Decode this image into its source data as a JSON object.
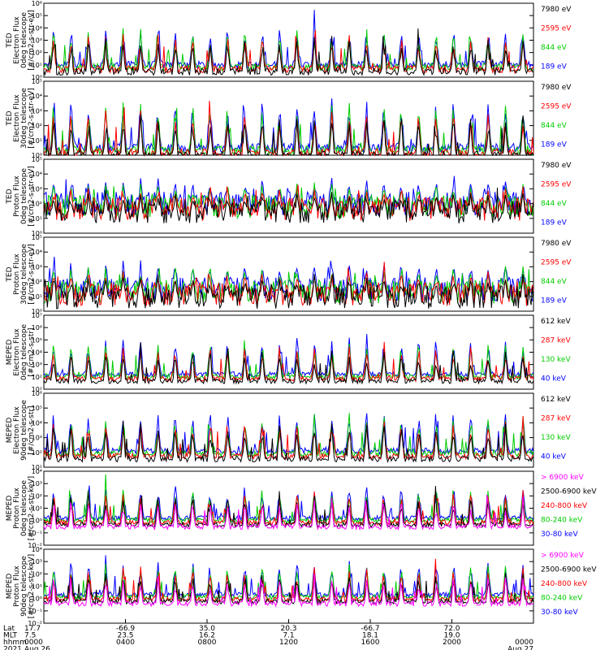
{
  "chart_data": {
    "type": "line",
    "x_axis": {
      "rows": [
        {
          "label": "Lat",
          "values": [
            "17.7",
            "-66.9",
            "35.0",
            "20.3",
            "-66.7",
            "72.0",
            ""
          ]
        },
        {
          "label": "MLT",
          "values": [
            "7.5",
            "23.5",
            "16.2",
            "7.1",
            "18.1",
            "19.0",
            ""
          ]
        },
        {
          "label": "hhmm",
          "values": [
            "0000",
            "0400",
            "0800",
            "1200",
            "1600",
            "2000",
            "0000"
          ]
        },
        {
          "label": "2021",
          "values": [
            "Aug 26",
            "",
            "",
            "",
            "",
            "",
            "Aug 27"
          ]
        }
      ],
      "xlim_hours": [
        0,
        24
      ]
    },
    "panels": [
      {
        "ylabel": [
          "TED",
          "Electron Flux",
          "0deg telescope",
          "[#/cm2-s-str-eV]"
        ],
        "ylim_log10": [
          0,
          6
        ],
        "yticks": [
          "10⁰",
          "10¹",
          "10²",
          "10³",
          "10⁴",
          "10⁵",
          "10⁶"
        ],
        "legend": [
          {
            "text": "7980 eV",
            "color": "#000000"
          },
          {
            "text": "2595 eV",
            "color": "#ff0000"
          },
          {
            "text": "844 eV",
            "color": "#00cc00"
          },
          {
            "text": "189 eV",
            "color": "#0000ff"
          }
        ],
        "base": 1.0,
        "spike": 3.4,
        "noise": 0.3
      },
      {
        "ylabel": [
          "TED",
          "Electron Flux",
          "30deg telescope",
          "[#/cm2-s-str-eV]"
        ],
        "ylim_log10": [
          0,
          5
        ],
        "yticks": [
          "10⁰",
          "10¹",
          "10²",
          "10³",
          "10⁴",
          "10⁵"
        ],
        "legend": [
          {
            "text": "7980 eV",
            "color": "#000000"
          },
          {
            "text": "2595 eV",
            "color": "#ff0000"
          },
          {
            "text": "844 eV",
            "color": "#00cc00"
          },
          {
            "text": "189 eV",
            "color": "#0000ff"
          }
        ],
        "base": 0.5,
        "spike": 3.5,
        "noise": 0.3
      },
      {
        "ylabel": [
          "TED",
          "Proton Flux",
          "0deg telescope",
          "[#/cm2-s-str-eV]"
        ],
        "ylim_log10": [
          0,
          5
        ],
        "yticks": [
          "10⁰",
          "10¹",
          "10²",
          "10³",
          "10⁴",
          "10⁵"
        ],
        "legend": [
          {
            "text": "7980 eV",
            "color": "#000000"
          },
          {
            "text": "2595 eV",
            "color": "#ff0000"
          },
          {
            "text": "844 eV",
            "color": "#00cc00"
          },
          {
            "text": "189 eV",
            "color": "#0000ff"
          }
        ],
        "base": 2.0,
        "spike": 1.8,
        "noise": 0.8
      },
      {
        "ylabel": [
          "TED",
          "Proton Flux",
          "30deg telescope",
          "[#/cm2-s-str-eV]"
        ],
        "ylim_log10": [
          0,
          5
        ],
        "yticks": [
          "10⁰",
          "10¹",
          "10²",
          "10³",
          "10⁴",
          "10⁵"
        ],
        "legend": [
          {
            "text": "7980 eV",
            "color": "#000000"
          },
          {
            "text": "2595 eV",
            "color": "#ff0000"
          },
          {
            "text": "844 eV",
            "color": "#00cc00"
          },
          {
            "text": "189 eV",
            "color": "#0000ff"
          }
        ],
        "base": 1.5,
        "spike": 2.0,
        "noise": 0.8
      },
      {
        "ylabel": [
          "MEPED",
          "Electron Flux",
          "0deg telescope",
          "[#/cm2-s-str]"
        ],
        "ylim_log10": [
          1,
          7
        ],
        "yticks": [
          "10¹",
          "10²",
          "10³",
          "10⁴",
          "10⁵",
          "10⁶",
          "10⁷"
        ],
        "legend": [
          {
            "text": "612 keV",
            "color": "#000000"
          },
          {
            "text": "287 keV",
            "color": "#ff0000"
          },
          {
            "text": "130 keV",
            "color": "#00cc00"
          },
          {
            "text": "40 keV",
            "color": "#0000ff"
          }
        ],
        "base": 2.2,
        "spike": 3.2,
        "noise": 0.2
      },
      {
        "ylabel": [
          "MEPED",
          "Electron Flux",
          "90deg telescope",
          "[#/cm2-s-str]"
        ],
        "ylim_log10": [
          1,
          6
        ],
        "yticks": [
          "10¹",
          "10²",
          "10³",
          "10⁴",
          "10⁵",
          "10⁶"
        ],
        "legend": [
          {
            "text": "612 keV",
            "color": "#000000"
          },
          {
            "text": "287 keV",
            "color": "#ff0000"
          },
          {
            "text": "130 keV",
            "color": "#00cc00"
          },
          {
            "text": "40 keV",
            "color": "#0000ff"
          }
        ],
        "base": 2.1,
        "spike": 3.0,
        "noise": 0.2
      },
      {
        "ylabel": [
          "MEPED",
          "Proton Flux",
          "0deg telescope",
          "[#/cm2-s-str-keV]"
        ],
        "ylim_log10": [
          -2,
          4
        ],
        "yticks": [
          "10⁻²",
          "10⁻¹",
          "10⁰",
          "10¹",
          "10²",
          "10³",
          "10⁴"
        ],
        "legend": [
          {
            "text": "> 6900 keV",
            "color": "#ff00ff"
          },
          {
            "text": "2500-6900 keV",
            "color": "#000000"
          },
          {
            "text": "240-800 keV",
            "color": "#ff0000"
          },
          {
            "text": "80-240 keV",
            "color": "#00cc00"
          },
          {
            "text": "30-80 keV",
            "color": "#0000ff"
          }
        ],
        "base": 0.2,
        "spike": 3.0,
        "noise": 0.2
      },
      {
        "ylabel": [
          "MEPED",
          "Proton Flux",
          "90deg telescope",
          "[#/cm2-s-str-keV]"
        ],
        "ylim_log10": [
          -2,
          4
        ],
        "yticks": [
          "10⁻²",
          "10⁻¹",
          "10⁰",
          "10¹",
          "10²",
          "10³",
          "10⁴"
        ],
        "legend": [
          {
            "text": "> 6900 keV",
            "color": "#ff00ff"
          },
          {
            "text": "2500-6900 keV",
            "color": "#000000"
          },
          {
            "text": "240-800 keV",
            "color": "#ff0000"
          },
          {
            "text": "80-240 keV",
            "color": "#00cc00"
          },
          {
            "text": "30-80 keV",
            "color": "#0000ff"
          }
        ],
        "base": 0.3,
        "spike": 3.0,
        "noise": 0.2
      }
    ]
  }
}
